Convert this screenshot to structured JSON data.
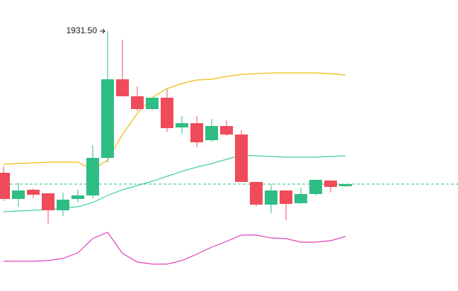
{
  "chart_data": {
    "type": "candlestick",
    "ylim": [
      1913.15,
      1933.7
    ],
    "up_color": "#2ebd85",
    "down_color": "#ef4b5a",
    "candles": {
      "open": [
        1921.5,
        1919.65,
        1920.3,
        1920.05,
        1918.85,
        1919.65,
        1919.9,
        1922.55,
        1928.1,
        1926.9,
        1926.0,
        1926.8,
        1924.7,
        1925.0,
        1923.8,
        1924.8,
        1924.2,
        1920.85,
        1919.25,
        1920.25,
        1919.35,
        1920.0,
        1920.95,
        1920.55
      ],
      "high": [
        1921.95,
        1920.8,
        1920.4,
        1920.05,
        1920.1,
        1920.3,
        1923.45,
        1931.5,
        1930.9,
        1927.6,
        1926.8,
        1927.4,
        1925.5,
        1925.5,
        1925.3,
        1925.2,
        1924.5,
        1920.85,
        1920.7,
        1920.25,
        1920.45,
        1921.0,
        1920.95,
        1920.7
      ],
      "low": [
        1919.5,
        1919.1,
        1919.7,
        1917.9,
        1918.45,
        1919.4,
        1919.7,
        1922.25,
        1926.9,
        1925.85,
        1925.95,
        1924.4,
        1924.25,
        1923.3,
        1923.7,
        1924.1,
        1920.85,
        1919.15,
        1918.65,
        1918.15,
        1919.3,
        1919.9,
        1920.1,
        1920.5
      ],
      "close": [
        1919.65,
        1920.25,
        1919.95,
        1918.85,
        1919.6,
        1919.9,
        1922.55,
        1928.1,
        1926.9,
        1926.0,
        1926.8,
        1924.65,
        1925.0,
        1923.65,
        1924.8,
        1924.2,
        1920.85,
        1919.25,
        1920.25,
        1919.3,
        1920.0,
        1921.0,
        1920.5,
        1920.7
      ]
    },
    "overlays": [
      {
        "color": "#f0b90b",
        "values": [
          1922.1,
          1922.15,
          1922.2,
          1922.25,
          1922.25,
          1922.25,
          1921.7,
          1922.4,
          1924.2,
          1925.7,
          1926.8,
          1927.45,
          1927.8,
          1928.05,
          1928.1,
          1928.3,
          1928.45,
          1928.5,
          1928.55,
          1928.55,
          1928.55,
          1928.55,
          1928.5,
          1928.4
        ]
      },
      {
        "color": "#3fcf9a",
        "values": [
          1918.75,
          1918.8,
          1918.85,
          1918.9,
          1919.0,
          1919.1,
          1919.4,
          1919.9,
          1920.3,
          1920.6,
          1920.9,
          1921.25,
          1921.6,
          1921.9,
          1922.15,
          1922.45,
          1922.75,
          1922.7,
          1922.65,
          1922.6,
          1922.6,
          1922.6,
          1922.65,
          1922.7
        ]
      },
      {
        "color": "#e040b8",
        "values": [
          1915.25,
          1915.25,
          1915.25,
          1915.3,
          1915.45,
          1915.85,
          1916.85,
          1917.3,
          1915.8,
          1915.2,
          1915.05,
          1915.05,
          1915.3,
          1915.75,
          1916.25,
          1916.65,
          1917.1,
          1917.1,
          1916.9,
          1916.85,
          1916.6,
          1916.6,
          1916.7,
          1917.0
        ]
      }
    ],
    "last_price": 1920.7,
    "annotation": {
      "label": "1931.50",
      "value": 1931.5
    }
  }
}
